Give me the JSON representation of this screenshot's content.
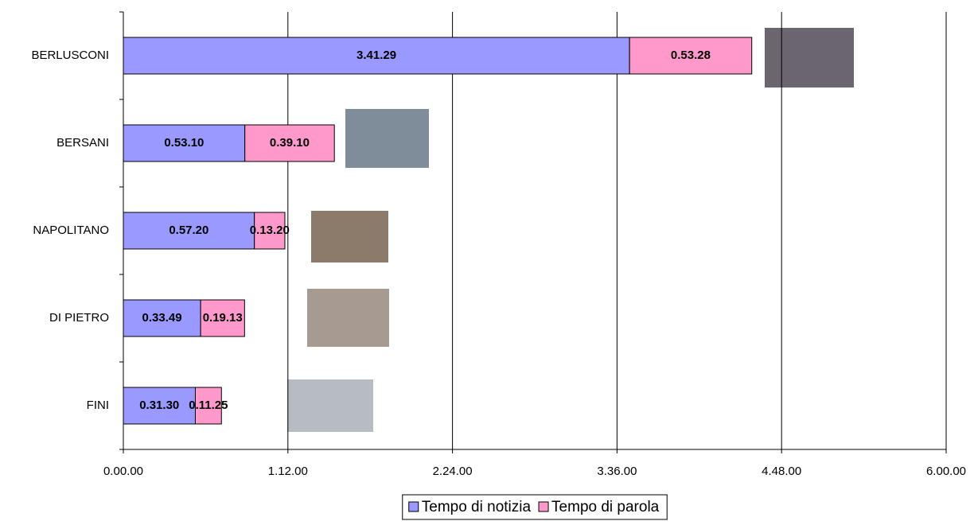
{
  "chart_data": {
    "type": "stacked-barh",
    "categories": [
      "BERLUSCONI",
      "BERSANI",
      "NAPOLITANO",
      "DI PIETRO",
      "FINI"
    ],
    "series": [
      {
        "name": "Tempo di notizia",
        "color": "#9999ff",
        "values": [
          13289,
          3190,
          3440,
          2029,
          1890
        ],
        "value_labels": [
          "3.41.29",
          "0.53.10",
          "0.57.20",
          "0.33.49",
          "0.31.30"
        ]
      },
      {
        "name": "Tempo di parola",
        "color": "#ff99cc",
        "values": [
          3208,
          2350,
          800,
          1153,
          685
        ],
        "value_labels": [
          "0.53.28",
          "0.39.10",
          "0.13.20",
          "0.19.13",
          "0.11.25"
        ]
      }
    ],
    "xlim": [
      0,
      21600
    ],
    "xticks": [
      {
        "value": 0,
        "label": "0.00.00"
      },
      {
        "value": 4320,
        "label": "1.12.00"
      },
      {
        "value": 8640,
        "label": "2.24.00"
      },
      {
        "value": 12960,
        "label": "3.36.00"
      },
      {
        "value": 17280,
        "label": "4.48.00"
      },
      {
        "value": 21600,
        "label": "6.00.00"
      }
    ],
    "grid": true,
    "legend": "bottom"
  }
}
